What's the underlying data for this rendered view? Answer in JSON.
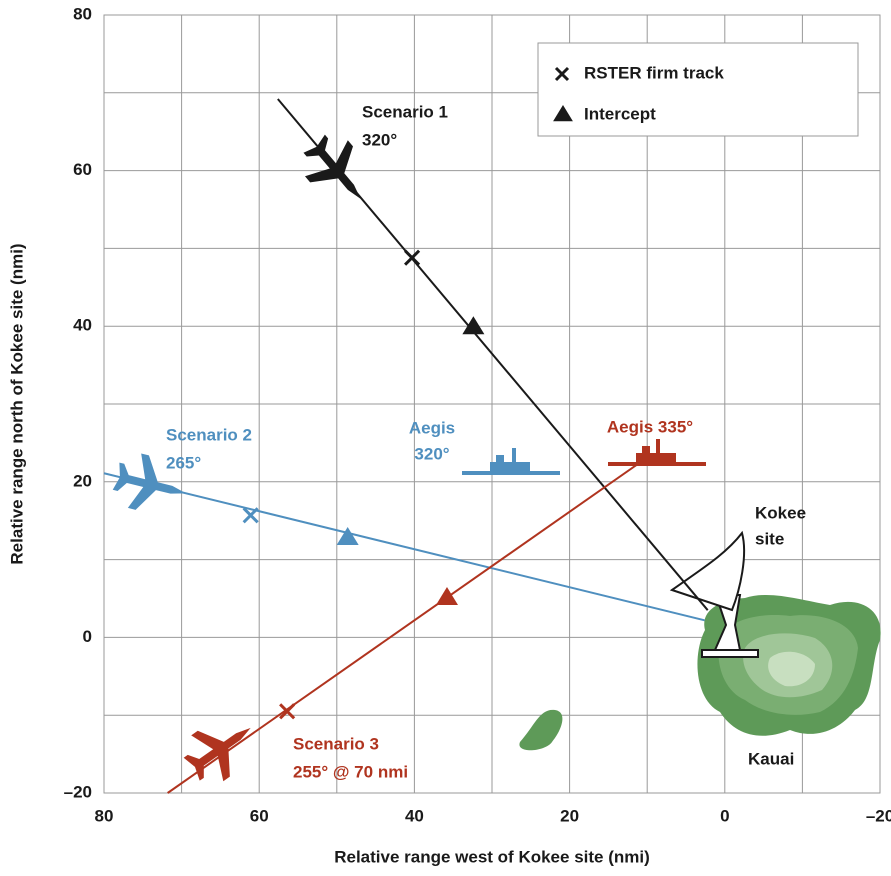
{
  "chart_data": {
    "type": "line",
    "xlabel": "Relative range west of Kokee site (nmi)",
    "ylabel": "Relative range north of Kokee site (nmi)",
    "xlim": [
      80,
      -20
    ],
    "ylim": [
      -20,
      80
    ],
    "xticks": [
      80,
      60,
      40,
      20,
      0,
      {
        "value": -20,
        "label": "–20"
      }
    ],
    "yticks": [
      80,
      60,
      40,
      20,
      0,
      {
        "value": -20,
        "label": "–20"
      }
    ],
    "minor_xticks": [
      70,
      50,
      30,
      10,
      -10
    ],
    "minor_yticks": [
      70,
      50,
      30,
      10,
      -10
    ],
    "grid": true,
    "legend": {
      "position": "upper right",
      "firm_track": "RSTER firm track",
      "intercept": "Intercept"
    },
    "series": [
      {
        "name": "Scenario 1",
        "heading": "320°",
        "color": "#1a1a1a",
        "x": [
          57.6,
          2.2
        ],
        "y": [
          69.2,
          3.5
        ],
        "firm_track": {
          "x": 40.3,
          "y": 48.8
        },
        "intercept": {
          "x": 32.4,
          "y": 40.0
        }
      },
      {
        "name": "Scenario 2",
        "heading": "265°",
        "color": "#4f8fbf",
        "x": [
          80,
          2.6
        ],
        "y": [
          21.1,
          2.2
        ],
        "firm_track": {
          "x": 61.1,
          "y": 15.7
        },
        "intercept": {
          "x": 48.6,
          "y": 12.9
        }
      },
      {
        "name": "Scenario 3",
        "heading": "255° @ 70 nmi",
        "color": "#b0341f",
        "x": [
          71.8,
          10.9
        ],
        "y": [
          -20,
          22.5
        ],
        "firm_track": {
          "x": 56.4,
          "y": -9.5
        },
        "intercept": {
          "x": 35.8,
          "y": 5.2
        }
      }
    ],
    "annotations": [
      {
        "lines": [
          "Aegis",
          "320°"
        ],
        "color": "#4f8fbf"
      },
      {
        "lines": [
          "Aegis 335°"
        ],
        "color": "#b0341f"
      },
      {
        "lines": [
          "Kokee",
          "site"
        ],
        "color": "#1a1a1a"
      },
      {
        "lines": [
          "Kauai"
        ],
        "color": "#1a1a1a"
      }
    ]
  }
}
